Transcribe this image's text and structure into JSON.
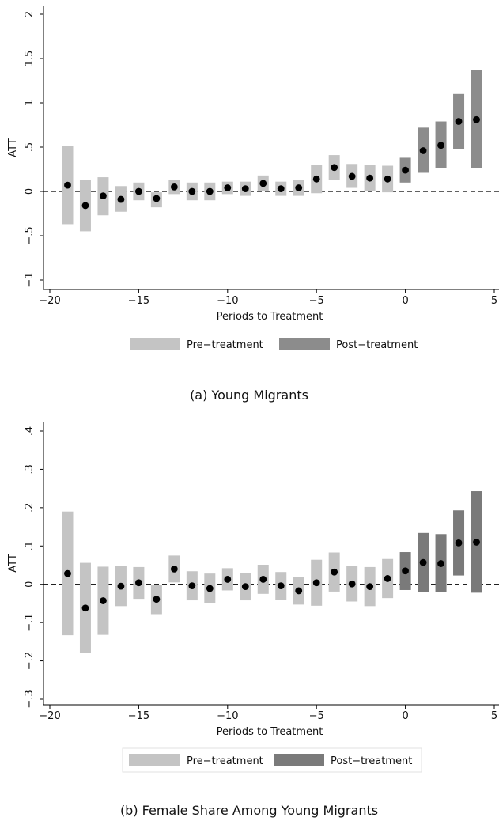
{
  "chart_data": [
    {
      "type": "scatter",
      "title": "",
      "caption": "(a) Young Migrants",
      "xlabel": "Periods to Treatment",
      "ylabel": "ATT",
      "xlim": [
        -20.5,
        5.3
      ],
      "ylim": [
        -1.1,
        2.05
      ],
      "xticks": [
        -20,
        -15,
        -10,
        -5,
        0,
        5
      ],
      "xtick_labels": [
        "−20",
        "−15",
        "−10",
        "−5",
        "0",
        "5"
      ],
      "yticks": [
        -1,
        -0.5,
        0,
        0.5,
        1,
        1.5,
        2
      ],
      "ytick_labels": [
        "−1",
        "−.5",
        "0",
        ".5",
        "1",
        "1.5",
        "2"
      ],
      "reference_line": 0,
      "grid": false,
      "legend_position": "bottom",
      "colors": {
        "pre": "#c4c4c4",
        "post": "#8c8c8c",
        "point": "#000000"
      },
      "series": [
        {
          "name": "Pre−treatment",
          "x": [
            -19,
            -18,
            -17,
            -16,
            -15,
            -14,
            -13,
            -12,
            -11,
            -10,
            -9,
            -8,
            -7,
            -6,
            -5,
            -4,
            -3,
            -2,
            -1
          ],
          "estimate": [
            0.07,
            -0.16,
            -0.05,
            -0.09,
            0.0,
            -0.08,
            0.05,
            0.0,
            0.0,
            0.04,
            0.03,
            0.09,
            0.03,
            0.04,
            0.14,
            0.27,
            0.17,
            0.15,
            0.14
          ],
          "ci_low": [
            -0.37,
            -0.45,
            -0.27,
            -0.23,
            -0.1,
            -0.18,
            -0.03,
            -0.1,
            -0.1,
            -0.03,
            -0.05,
            0.0,
            -0.05,
            -0.05,
            -0.02,
            0.13,
            0.04,
            0.0,
            -0.01
          ],
          "ci_high": [
            0.51,
            0.13,
            0.16,
            0.06,
            0.1,
            -0.01,
            0.13,
            0.1,
            0.1,
            0.11,
            0.11,
            0.18,
            0.11,
            0.13,
            0.3,
            0.41,
            0.31,
            0.3,
            0.29
          ]
        },
        {
          "name": "Post−treatment",
          "x": [
            0,
            1,
            2,
            3,
            4
          ],
          "estimate": [
            0.24,
            0.46,
            0.52,
            0.79,
            0.81
          ],
          "ci_low": [
            0.1,
            0.21,
            0.26,
            0.48,
            0.26
          ],
          "ci_high": [
            0.38,
            0.72,
            0.79,
            1.1,
            1.37
          ]
        }
      ]
    },
    {
      "type": "scatter",
      "title": "",
      "caption": "(b) Female Share Among Young Migrants",
      "xlabel": "Periods to Treatment",
      "ylabel": "ATT",
      "xlim": [
        -20.5,
        5.3
      ],
      "ylim": [
        -0.33,
        0.42
      ],
      "xticks": [
        -20,
        -15,
        -10,
        -5,
        0,
        5
      ],
      "xtick_labels": [
        "−20",
        "−15",
        "−10",
        "−5",
        "0",
        "5"
      ],
      "yticks": [
        -0.3,
        -0.2,
        -0.1,
        0,
        0.1,
        0.2,
        0.3,
        0.4
      ],
      "ytick_labels": [
        "−.3",
        "−.2",
        "−.1",
        "0",
        ".1",
        ".2",
        ".3",
        ".4"
      ],
      "reference_line": 0,
      "grid": false,
      "legend_position": "bottom",
      "colors": {
        "pre": "#c4c4c4",
        "post": "#7a7a7a",
        "point": "#000000"
      },
      "series": [
        {
          "name": "Pre−treatment",
          "x": [
            -19,
            -18,
            -17,
            -16,
            -15,
            -14,
            -13,
            -12,
            -11,
            -10,
            -9,
            -8,
            -7,
            -6,
            -5,
            -4,
            -3,
            -2,
            -1
          ],
          "estimate": [
            0.028,
            -0.062,
            -0.043,
            -0.005,
            0.004,
            -0.039,
            0.04,
            -0.004,
            -0.011,
            0.013,
            -0.006,
            0.013,
            -0.004,
            -0.017,
            0.004,
            0.032,
            0.001,
            -0.006,
            0.015
          ],
          "ci_low": [
            -0.133,
            -0.179,
            -0.132,
            -0.057,
            -0.038,
            -0.078,
            0.005,
            -0.042,
            -0.05,
            -0.016,
            -0.042,
            -0.025,
            -0.04,
            -0.053,
            -0.056,
            -0.019,
            -0.045,
            -0.057,
            -0.036
          ],
          "ci_high": [
            0.19,
            0.056,
            0.046,
            0.048,
            0.045,
            -0.001,
            0.075,
            0.034,
            0.028,
            0.042,
            0.03,
            0.051,
            0.032,
            0.019,
            0.064,
            0.083,
            0.047,
            0.045,
            0.066
          ]
        },
        {
          "name": "Post−treatment",
          "x": [
            0,
            1,
            2,
            3,
            4
          ],
          "estimate": [
            0.035,
            0.057,
            0.054,
            0.108,
            0.11
          ],
          "ci_low": [
            -0.015,
            -0.02,
            -0.021,
            0.023,
            -0.022
          ],
          "ci_high": [
            0.084,
            0.134,
            0.131,
            0.193,
            0.243
          ]
        }
      ]
    }
  ]
}
